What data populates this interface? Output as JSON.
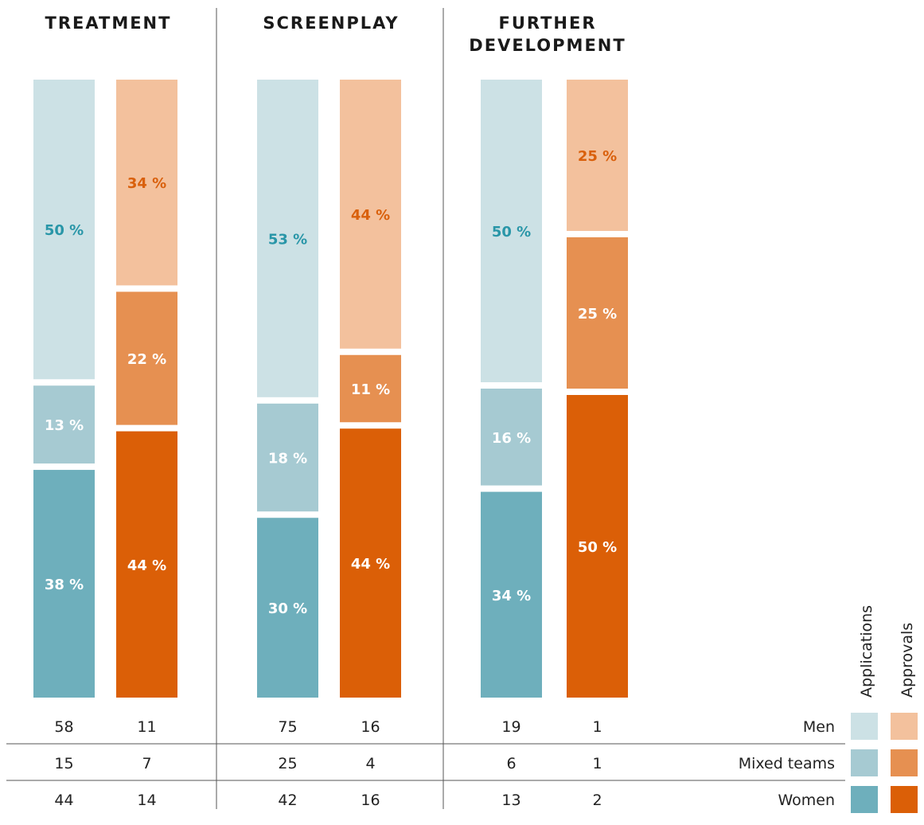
{
  "chart_data": {
    "type": "bar",
    "stacked": true,
    "unit": "%",
    "groups": [
      {
        "title": "TREATMENT",
        "applications": {
          "percent": {
            "men": 50,
            "mixed": 13,
            "women": 38
          },
          "labels": {
            "men": "50 %",
            "mixed": "13 %",
            "women": "38 %"
          },
          "counts": {
            "men": "58",
            "mixed": "15",
            "women": "44"
          }
        },
        "approvals": {
          "percent": {
            "men": 34,
            "mixed": 22,
            "women": 44
          },
          "labels": {
            "men": "34 %",
            "mixed": "22 %",
            "women": "44 %"
          },
          "counts": {
            "men": "11",
            "mixed": "7",
            "women": "14"
          }
        }
      },
      {
        "title": "SCREENPLAY",
        "applications": {
          "percent": {
            "men": 53,
            "mixed": 18,
            "women": 30
          },
          "labels": {
            "men": "53 %",
            "mixed": "18 %",
            "women": "30 %"
          },
          "counts": {
            "men": "75",
            "mixed": "25",
            "women": "42"
          }
        },
        "approvals": {
          "percent": {
            "men": 44,
            "mixed": 11,
            "women": 44
          },
          "labels": {
            "men": "44 %",
            "mixed": "11 %",
            "women": "44 %"
          },
          "counts": {
            "men": "16",
            "mixed": "4",
            "women": "16"
          }
        }
      },
      {
        "title": "FURTHER DEVELOPMENT",
        "applications": {
          "percent": {
            "men": 50,
            "mixed": 16,
            "women": 34
          },
          "labels": {
            "men": "50 %",
            "mixed": "16 %",
            "women": "34 %"
          },
          "counts": {
            "men": "19",
            "mixed": "6",
            "women": "13"
          }
        },
        "approvals": {
          "percent": {
            "men": 25,
            "mixed": 25,
            "women": 50
          },
          "labels": {
            "men": "25 %",
            "mixed": "25 %",
            "women": "50 %"
          },
          "counts": {
            "men": "1",
            "mixed": "1",
            "women": "2"
          }
        }
      }
    ],
    "legend": {
      "columns": {
        "applications": "Applications",
        "approvals": "Approvals"
      },
      "rows": [
        {
          "key": "men",
          "label": "Men"
        },
        {
          "key": "mixed",
          "label": "Mixed teams"
        },
        {
          "key": "women",
          "label": "Women"
        }
      ]
    },
    "colors": {
      "applications": {
        "men": "#cce1e5",
        "mixed": "#a6cad2",
        "women": "#6eafbc"
      },
      "approvals": {
        "men": "#f3c19d",
        "mixed": "#e69051",
        "women": "#db5f07"
      },
      "label_applications_men": "#2996a8",
      "label_approvals_men": "#d9600c",
      "label_other": "#ffffff"
    }
  }
}
